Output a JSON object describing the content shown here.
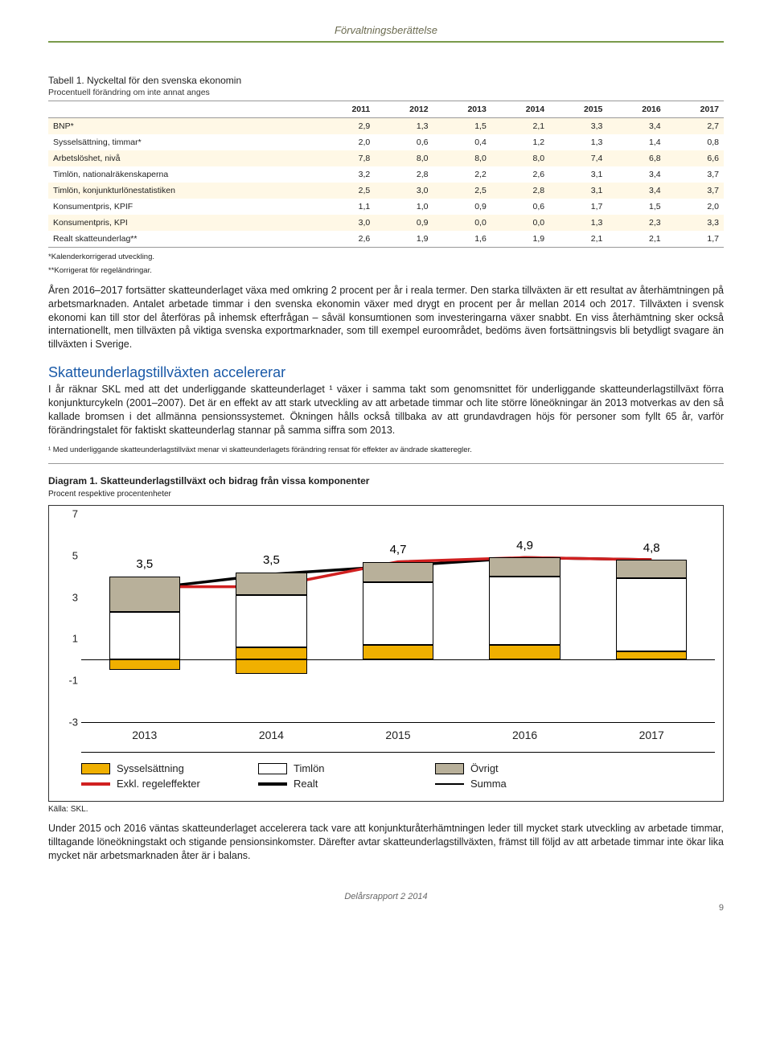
{
  "header": {
    "title": "Förvaltningsberättelse"
  },
  "table": {
    "caption": "Tabell 1. Nyckeltal för den svenska ekonomin",
    "subcaption": "Procentuell förändring om inte annat anges",
    "columns": [
      "",
      "2011",
      "2012",
      "2013",
      "2014",
      "2015",
      "2016",
      "2017"
    ],
    "rows": [
      [
        "BNP*",
        "2,9",
        "1,3",
        "1,5",
        "2,1",
        "3,3",
        "3,4",
        "2,7"
      ],
      [
        "Sysselsättning, timmar*",
        "2,0",
        "0,6",
        "0,4",
        "1,2",
        "1,3",
        "1,4",
        "0,8"
      ],
      [
        "Arbetslöshet, nivå",
        "7,8",
        "8,0",
        "8,0",
        "8,0",
        "7,4",
        "6,8",
        "6,6"
      ],
      [
        "Timlön, nationalräkenskaperna",
        "3,2",
        "2,8",
        "2,2",
        "2,6",
        "3,1",
        "3,4",
        "3,7"
      ],
      [
        "Timlön, konjunkturlönestatistiken",
        "2,5",
        "3,0",
        "2,5",
        "2,8",
        "3,1",
        "3,4",
        "3,7"
      ],
      [
        "Konsumentpris, KPIF",
        "1,1",
        "1,0",
        "0,9",
        "0,6",
        "1,7",
        "1,5",
        "2,0"
      ],
      [
        "Konsumentpris, KPI",
        "3,0",
        "0,9",
        "0,0",
        "0,0",
        "1,3",
        "2,3",
        "3,3"
      ],
      [
        "Realt skatteunderlag**",
        "2,6",
        "1,9",
        "1,6",
        "1,9",
        "2,1",
        "2,1",
        "1,7"
      ]
    ],
    "footnote1": "*Kalenderkorrigerad utveckling.",
    "footnote2": "**Korrigerat för regeländringar."
  },
  "para1": "Åren 2016–2017 fortsätter skatteunderlaget växa med omkring 2 procent per år i reala termer. Den starka tillväxten är ett resultat av återhämtningen på arbetsmarknaden. Antalet arbetade timmar i den svenska ekonomin växer med drygt en procent per år mellan 2014 och 2017. Tillväxten i svensk ekonomi kan till stor del återföras på inhemsk efterfrågan – såväl konsumtionen som investeringarna växer snabbt. En viss återhämtning sker också internationellt, men tillväxten på viktiga svenska exportmarknader, som till exempel euroområdet, bedöms även fortsättningsvis bli betydligt svagare än tillväxten i Sverige.",
  "section": {
    "title": "Skatteunderlagstillväxten accelererar",
    "body": "I år räknar SKL med att det underliggande skatteunderlaget ¹ växer i samma takt som genomsnittet för underliggande skatteunderlagstillväxt förra konjunkturcykeln (2001–2007). Det är en effekt av att stark utveckling av att arbetade timmar och lite större löneökningar än 2013 motverkas av den så kallade bromsen i det allmänna pensionssystemet. Ökningen hålls också tillbaka av att grundavdragen höjs för personer som fyllt 65 år, varför förändringstalet för faktiskt skatteunderlag stannar på samma siffra som 2013."
  },
  "note1": "¹ Med underliggande skatteunderlagstillväxt menar vi skatteunderlagets förändring rensat för effekter av ändrade skatteregler.",
  "diagram": {
    "title": "Diagram 1. Skatteunderlagstillväxt och bidrag från vissa komponenter",
    "sub": "Procent respektive procentenheter",
    "y_ticks": [
      7,
      5,
      3,
      1,
      -1,
      -3
    ],
    "y_min": -3,
    "y_max": 7,
    "categories": [
      "2013",
      "2014",
      "2015",
      "2016",
      "2017"
    ],
    "labels": [
      "3,5",
      "3,5",
      "4,7",
      "4,9",
      "4,8"
    ],
    "stacks": [
      {
        "yellow_neg": 0.5,
        "white": 2.3,
        "grey": 1.7
      },
      {
        "yellow_pos": 0.6,
        "yellow_neg": 0.7,
        "white": 2.5,
        "grey": 1.1
      },
      {
        "yellow_pos": 0.7,
        "white": 3.0,
        "grey": 1.0
      },
      {
        "yellow_pos": 0.7,
        "white": 3.3,
        "grey": 0.9
      },
      {
        "yellow_pos": 0.4,
        "white": 3.5,
        "grey": 0.9
      }
    ],
    "red_line": [
      3.5,
      3.5,
      4.7,
      4.9,
      4.8
    ],
    "black_line": [
      3.4,
      4.1,
      4.5,
      4.9,
      4.8
    ],
    "legend": {
      "r1": [
        "Sysselsättning",
        "Timlön",
        "Övrigt"
      ],
      "r2": [
        "Exkl. regeleffekter",
        "Realt",
        "Summa"
      ]
    },
    "source": "Källa: SKL."
  },
  "para2": "Under 2015 och 2016 väntas skatteunderlaget accelerera tack vare att konjunkturåterhämtningen leder till mycket stark utveckling av arbetade timmar, tilltagande löneökningstakt och stigande pensionsinkomster. Därefter avtar skatteunderlagstillväxten, främst till följd av att arbetade timmar inte ökar lika mycket när arbetsmarknaden åter är i balans.",
  "footer": {
    "doc": "Delårsrapport 2 2014",
    "page": "9"
  }
}
